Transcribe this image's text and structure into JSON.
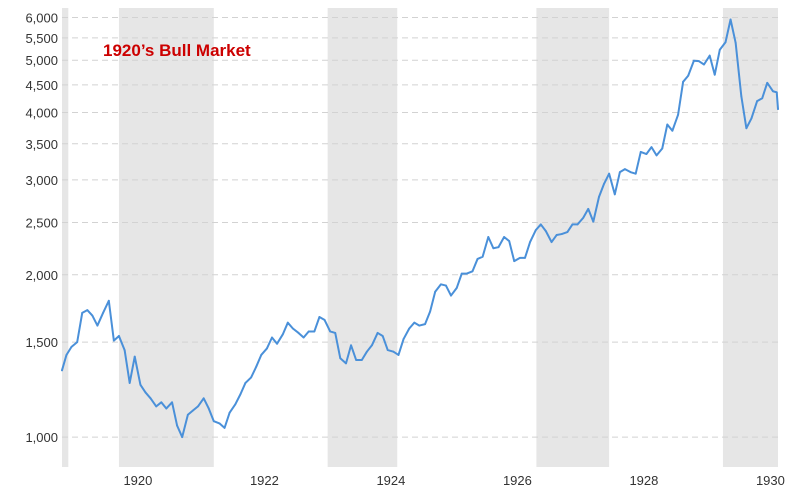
{
  "chart_data": {
    "type": "line",
    "title": "1920’s Bull Market",
    "xlabel": "",
    "ylabel": "",
    "y_scale": "log",
    "xlim": [
      1918.8,
      1930.12
    ],
    "ylim": [
      880,
      6250
    ],
    "grid": "horizontal dashed",
    "y_ticks": [
      {
        "value": 1000,
        "label": "1,000"
      },
      {
        "value": 1500,
        "label": "1,500"
      },
      {
        "value": 2000,
        "label": "2,000"
      },
      {
        "value": 2500,
        "label": "2,500"
      },
      {
        "value": 3000,
        "label": "3,000"
      },
      {
        "value": 3500,
        "label": "3,500"
      },
      {
        "value": 4000,
        "label": "4,000"
      },
      {
        "value": 4500,
        "label": "4,500"
      },
      {
        "value": 5000,
        "label": "5,000"
      },
      {
        "value": 5500,
        "label": "5,500"
      },
      {
        "value": 6000,
        "label": "6,000"
      }
    ],
    "x_ticks": [
      {
        "value": 1920,
        "label": "1920"
      },
      {
        "value": 1922,
        "label": "1922"
      },
      {
        "value": 1924,
        "label": "1924"
      },
      {
        "value": 1926,
        "label": "1926"
      },
      {
        "value": 1928,
        "label": "1928"
      },
      {
        "value": 1930,
        "label": "1930"
      }
    ],
    "shaded_periods": [
      [
        1918.8,
        1918.9
      ],
      [
        1919.7,
        1921.2
      ],
      [
        1923.0,
        1924.1
      ],
      [
        1926.3,
        1927.45
      ],
      [
        1929.25,
        1930.12
      ]
    ],
    "series": [
      {
        "color": "#4a90d9",
        "points": [
          [
            1918.8,
            1330
          ],
          [
            1918.87,
            1420
          ],
          [
            1918.95,
            1470
          ],
          [
            1919.04,
            1500
          ],
          [
            1919.12,
            1700
          ],
          [
            1919.2,
            1720
          ],
          [
            1919.28,
            1680
          ],
          [
            1919.36,
            1610
          ],
          [
            1919.45,
            1700
          ],
          [
            1919.54,
            1790
          ],
          [
            1919.62,
            1510
          ],
          [
            1919.7,
            1540
          ],
          [
            1919.79,
            1450
          ],
          [
            1919.87,
            1260
          ],
          [
            1919.95,
            1410
          ],
          [
            1920.04,
            1250
          ],
          [
            1920.12,
            1210
          ],
          [
            1920.2,
            1180
          ],
          [
            1920.29,
            1140
          ],
          [
            1920.37,
            1160
          ],
          [
            1920.45,
            1130
          ],
          [
            1920.54,
            1160
          ],
          [
            1920.62,
            1050
          ],
          [
            1920.7,
            1000
          ],
          [
            1920.79,
            1100
          ],
          [
            1920.87,
            1120
          ],
          [
            1920.95,
            1140
          ],
          [
            1921.04,
            1180
          ],
          [
            1921.12,
            1130
          ],
          [
            1921.2,
            1070
          ],
          [
            1921.29,
            1060
          ],
          [
            1921.37,
            1040
          ],
          [
            1921.45,
            1110
          ],
          [
            1921.54,
            1150
          ],
          [
            1921.62,
            1200
          ],
          [
            1921.7,
            1260
          ],
          [
            1921.79,
            1290
          ],
          [
            1921.87,
            1350
          ],
          [
            1921.95,
            1420
          ],
          [
            1922.04,
            1460
          ],
          [
            1922.12,
            1530
          ],
          [
            1922.2,
            1490
          ],
          [
            1922.29,
            1550
          ],
          [
            1922.37,
            1630
          ],
          [
            1922.45,
            1590
          ],
          [
            1922.54,
            1560
          ],
          [
            1922.62,
            1530
          ],
          [
            1922.7,
            1570
          ],
          [
            1922.79,
            1570
          ],
          [
            1922.87,
            1670
          ],
          [
            1922.95,
            1650
          ],
          [
            1923.04,
            1570
          ],
          [
            1923.12,
            1560
          ],
          [
            1923.2,
            1400
          ],
          [
            1923.29,
            1370
          ],
          [
            1923.37,
            1480
          ],
          [
            1923.45,
            1390
          ],
          [
            1923.54,
            1390
          ],
          [
            1923.62,
            1440
          ],
          [
            1923.7,
            1480
          ],
          [
            1923.79,
            1560
          ],
          [
            1923.87,
            1540
          ],
          [
            1923.95,
            1450
          ],
          [
            1924.04,
            1440
          ],
          [
            1924.12,
            1420
          ],
          [
            1924.2,
            1520
          ],
          [
            1924.29,
            1590
          ],
          [
            1924.37,
            1630
          ],
          [
            1924.45,
            1610
          ],
          [
            1924.54,
            1620
          ],
          [
            1924.62,
            1710
          ],
          [
            1924.7,
            1860
          ],
          [
            1924.79,
            1920
          ],
          [
            1924.87,
            1910
          ],
          [
            1924.95,
            1830
          ],
          [
            1925.04,
            1890
          ],
          [
            1925.12,
            2010
          ],
          [
            1925.2,
            2010
          ],
          [
            1925.29,
            2030
          ],
          [
            1925.37,
            2140
          ],
          [
            1925.45,
            2160
          ],
          [
            1925.54,
            2350
          ],
          [
            1925.62,
            2240
          ],
          [
            1925.7,
            2250
          ],
          [
            1925.79,
            2350
          ],
          [
            1925.87,
            2310
          ],
          [
            1925.95,
            2120
          ],
          [
            1926.04,
            2150
          ],
          [
            1926.12,
            2150
          ],
          [
            1926.2,
            2300
          ],
          [
            1926.29,
            2420
          ],
          [
            1926.37,
            2480
          ],
          [
            1926.45,
            2410
          ],
          [
            1926.54,
            2300
          ],
          [
            1926.62,
            2370
          ],
          [
            1926.7,
            2380
          ],
          [
            1926.79,
            2400
          ],
          [
            1926.87,
            2480
          ],
          [
            1926.95,
            2480
          ],
          [
            1927.04,
            2550
          ],
          [
            1927.12,
            2650
          ],
          [
            1927.2,
            2510
          ],
          [
            1927.29,
            2790
          ],
          [
            1927.37,
            2950
          ],
          [
            1927.45,
            3080
          ],
          [
            1927.54,
            2820
          ],
          [
            1927.62,
            3100
          ],
          [
            1927.7,
            3140
          ],
          [
            1927.79,
            3100
          ],
          [
            1927.87,
            3080
          ],
          [
            1927.95,
            3380
          ],
          [
            1928.04,
            3350
          ],
          [
            1928.12,
            3450
          ],
          [
            1928.2,
            3330
          ],
          [
            1928.29,
            3430
          ],
          [
            1928.37,
            3800
          ],
          [
            1928.45,
            3700
          ],
          [
            1928.54,
            3960
          ],
          [
            1928.62,
            4560
          ],
          [
            1928.7,
            4680
          ],
          [
            1928.79,
            4990
          ],
          [
            1928.87,
            4980
          ],
          [
            1928.95,
            4910
          ],
          [
            1929.04,
            5100
          ],
          [
            1929.12,
            4700
          ],
          [
            1929.2,
            5230
          ],
          [
            1929.29,
            5400
          ],
          [
            1929.37,
            5950
          ],
          [
            1929.45,
            5390
          ],
          [
            1929.54,
            4290
          ],
          [
            1929.62,
            3740
          ],
          [
            1929.7,
            3900
          ],
          [
            1929.79,
            4200
          ],
          [
            1929.87,
            4250
          ],
          [
            1929.95,
            4540
          ],
          [
            1930.04,
            4380
          ],
          [
            1930.1,
            4360
          ],
          [
            1930.12,
            4060
          ]
        ]
      }
    ]
  }
}
